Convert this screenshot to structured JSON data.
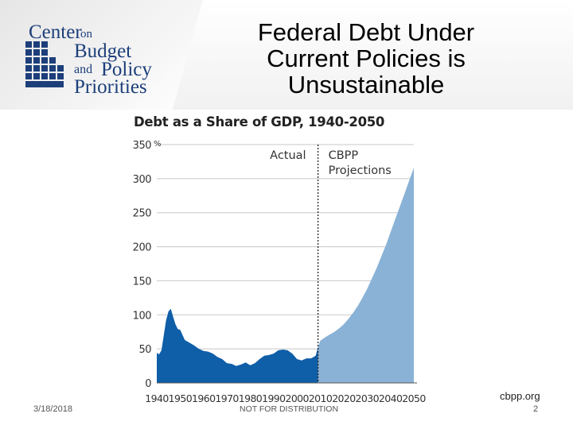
{
  "slide": {
    "title_lines": [
      "Federal Debt Under",
      "Current Policies is",
      "Unsustainable"
    ]
  },
  "logo": {
    "lines": [
      "Center",
      "on",
      "Budget",
      "and",
      "Policy",
      "Priorities"
    ]
  },
  "footer": {
    "date": "3/18/2018",
    "center": "NOT FOR DISTRIBUTION",
    "url": "cbpp.org",
    "page": "2"
  },
  "colors": {
    "actual": "#0f5ea8",
    "projection": "#8ab2d6",
    "grid": "#c8c8c8",
    "logo": "#1c3f7a"
  },
  "chart_data": {
    "type": "area",
    "title": "Debt as a Share of GDP, 1940-2050",
    "ylabel": "",
    "xlabel": "",
    "y_unit": "%",
    "xlim": [
      1940,
      2050
    ],
    "ylim": [
      0,
      350
    ],
    "y_ticks": [
      0,
      50,
      100,
      150,
      200,
      250,
      300,
      350
    ],
    "x_ticks": [
      1940,
      1950,
      1960,
      1970,
      1980,
      1990,
      2000,
      2010,
      2020,
      2030,
      2040,
      2050
    ],
    "grid": true,
    "divider_year": 2009,
    "annotations": [
      "Actual",
      "CBPP Projections"
    ],
    "series": [
      {
        "key": "actual",
        "x": [
          1940,
          1941,
          1942,
          1943,
          1944,
          1945,
          1946,
          1947,
          1948,
          1949,
          1950,
          1952,
          1954,
          1956,
          1958,
          1960,
          1962,
          1964,
          1966,
          1968,
          1970,
          1972,
          1974,
          1976,
          1978,
          1980,
          1982,
          1984,
          1986,
          1988,
          1990,
          1992,
          1994,
          1996,
          1998,
          2000,
          2002,
          2004,
          2006,
          2008,
          2009
        ],
        "values": [
          44,
          42,
          48,
          70,
          92,
          105,
          109,
          97,
          86,
          79,
          78,
          63,
          59,
          55,
          50,
          47,
          46,
          43,
          38,
          35,
          29,
          28,
          25,
          27,
          30,
          26,
          29,
          35,
          40,
          41,
          43,
          48,
          49,
          48,
          43,
          35,
          33,
          36,
          36,
          40,
          53
        ]
      },
      {
        "key": "projection",
        "x": [
          2009,
          2010,
          2012,
          2014,
          2016,
          2018,
          2020,
          2022,
          2024,
          2026,
          2028,
          2030,
          2032,
          2034,
          2036,
          2038,
          2040,
          2042,
          2044,
          2046,
          2048,
          2050
        ],
        "values": [
          53,
          62,
          67,
          71,
          75,
          80,
          86,
          94,
          103,
          113,
          125,
          138,
          153,
          168,
          185,
          202,
          221,
          240,
          259,
          278,
          297,
          316
        ]
      }
    ]
  }
}
